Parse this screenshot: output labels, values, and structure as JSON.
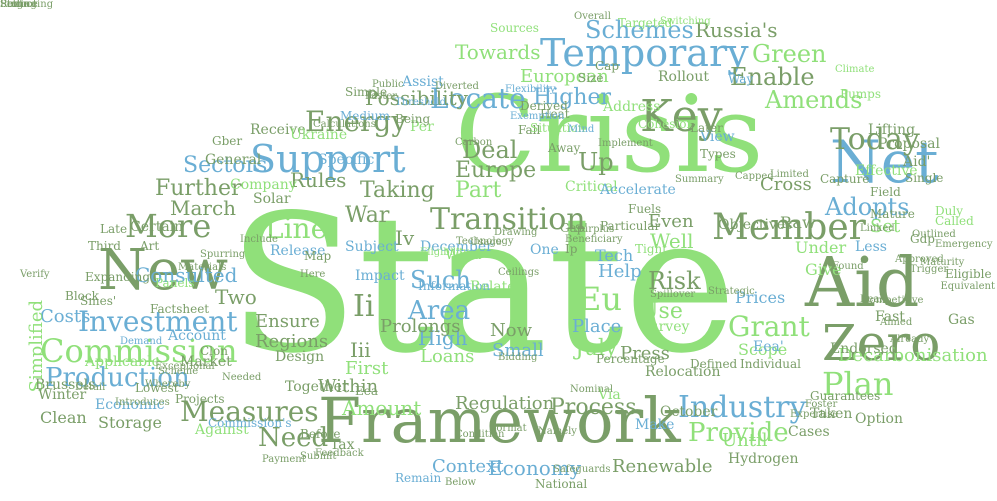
{
  "colors": {
    "light_green": "#90e07a",
    "mid_green": "#7a9e68",
    "blue": "#6aaed4"
  },
  "words": [
    {
      "t": "State",
      "c": "light_green"
    },
    {
      "t": "Crisis",
      "c": "light_green"
    },
    {
      "t": "Framework",
      "c": "mid_green"
    },
    {
      "t": "Aid",
      "c": "mid_green"
    },
    {
      "t": "Net",
      "c": "blue"
    },
    {
      "t": "New",
      "c": "mid_green"
    },
    {
      "t": "Zero",
      "c": "mid_green"
    },
    {
      "t": "Temporary",
      "c": "blue"
    },
    {
      "t": "Member",
      "c": "mid_green"
    },
    {
      "t": "Support",
      "c": "blue"
    },
    {
      "t": "Key",
      "c": "mid_green"
    },
    {
      "t": "Commission",
      "c": "light_green"
    },
    {
      "t": "Transition",
      "c": "mid_green"
    },
    {
      "t": "Measures",
      "c": "mid_green"
    },
    {
      "t": "Investment",
      "c": "blue"
    },
    {
      "t": "Industry",
      "c": "blue"
    },
    {
      "t": "More",
      "c": "mid_green"
    },
    {
      "t": "Energy",
      "c": "mid_green"
    },
    {
      "t": "Production",
      "c": "blue"
    },
    {
      "t": "Plan",
      "c": "light_green"
    },
    {
      "t": "Locate",
      "c": "blue"
    },
    {
      "t": "Today",
      "c": "mid_green"
    },
    {
      "t": "Schemes",
      "c": "blue"
    },
    {
      "t": "Amends",
      "c": "light_green"
    },
    {
      "t": "Adopts",
      "c": "blue"
    },
    {
      "t": "Provide",
      "c": "light_green"
    },
    {
      "t": "Area",
      "c": "blue"
    },
    {
      "t": "Grant",
      "c": "light_green"
    },
    {
      "t": "Eu",
      "c": "light_green"
    },
    {
      "t": "Line",
      "c": "light_green"
    },
    {
      "t": "Deal",
      "c": "mid_green"
    },
    {
      "t": "Europe",
      "c": "mid_green"
    },
    {
      "t": "Higher",
      "c": "blue"
    },
    {
      "t": "Enable",
      "c": "mid_green"
    },
    {
      "t": "Part",
      "c": "light_green"
    },
    {
      "t": "Up",
      "c": "mid_green"
    },
    {
      "t": "Amount",
      "c": "light_green"
    },
    {
      "t": "Process",
      "c": "mid_green"
    },
    {
      "t": "Economy",
      "c": "blue"
    },
    {
      "t": "Need",
      "c": "mid_green"
    },
    {
      "t": "Context",
      "c": "blue"
    },
    {
      "t": "Rules",
      "c": "mid_green"
    },
    {
      "t": "Further",
      "c": "mid_green"
    },
    {
      "t": "Sectors",
      "c": "blue"
    },
    {
      "t": "Possibility",
      "c": "mid_green"
    },
    {
      "t": "Russia's",
      "c": "mid_green"
    },
    {
      "t": "Green",
      "c": "light_green"
    },
    {
      "t": "Towards",
      "c": "light_green"
    },
    {
      "t": "European",
      "c": "light_green"
    },
    {
      "t": "Risk",
      "c": "mid_green"
    },
    {
      "t": "Such",
      "c": "blue"
    },
    {
      "t": "Taking",
      "c": "mid_green"
    },
    {
      "t": "War",
      "c": "mid_green"
    },
    {
      "t": "March",
      "c": "mid_green"
    },
    {
      "t": "Consulted",
      "c": "blue"
    },
    {
      "t": "Two",
      "c": "mid_green"
    },
    {
      "t": "Costs",
      "c": "blue"
    },
    {
      "t": "Simplified",
      "c": "light_green"
    },
    {
      "t": "Regions",
      "c": "mid_green"
    },
    {
      "t": "Ensure",
      "c": "mid_green"
    },
    {
      "t": "Within",
      "c": "mid_green"
    },
    {
      "t": "First",
      "c": "light_green"
    },
    {
      "t": "Iii",
      "c": "mid_green"
    },
    {
      "t": "Ii",
      "c": "mid_green"
    },
    {
      "t": "Iv",
      "c": "mid_green"
    },
    {
      "t": "High",
      "c": "blue"
    },
    {
      "t": "Loans",
      "c": "light_green"
    },
    {
      "t": "Prolongs",
      "c": "mid_green"
    },
    {
      "t": "Regulation",
      "c": "mid_green"
    },
    {
      "t": "Now",
      "c": "mid_green"
    },
    {
      "t": "Small",
      "c": "blue"
    },
    {
      "t": "July",
      "c": "light_green"
    },
    {
      "t": "Place",
      "c": "blue"
    },
    {
      "t": "Press",
      "c": "mid_green"
    },
    {
      "t": "Use",
      "c": "light_green"
    },
    {
      "t": "Help",
      "c": "blue"
    },
    {
      "t": "Tech",
      "c": "blue"
    },
    {
      "t": "Well",
      "c": "light_green"
    },
    {
      "t": "Even",
      "c": "mid_green"
    },
    {
      "t": "Renewable",
      "c": "mid_green"
    },
    {
      "t": "Under",
      "c": "light_green"
    },
    {
      "t": "Give",
      "c": "light_green"
    },
    {
      "t": "Prices",
      "c": "blue"
    },
    {
      "t": "Scope",
      "c": "light_green"
    },
    {
      "t": "Until",
      "c": "light_green"
    },
    {
      "t": "Decarbonisation",
      "c": "light_green"
    },
    {
      "t": "Set",
      "c": "light_green"
    },
    {
      "t": "Less",
      "c": "blue"
    },
    {
      "t": "Cross",
      "c": "mid_green"
    },
    {
      "t": "Raw",
      "c": "mid_green"
    },
    {
      "t": "Critical",
      "c": "light_green"
    },
    {
      "t": "Accelerate",
      "c": "blue"
    },
    {
      "t": "Address",
      "c": "light_green"
    },
    {
      "t": "Heat",
      "c": "mid_green"
    },
    {
      "t": "Fall",
      "c": "mid_green"
    },
    {
      "t": "Derived",
      "c": "mid_green"
    },
    {
      "t": "Per",
      "c": "light_green"
    },
    {
      "t": "Receive",
      "c": "mid_green"
    },
    {
      "t": "General",
      "c": "mid_green"
    },
    {
      "t": "Company",
      "c": "light_green"
    },
    {
      "t": "Ukraine",
      "c": "light_green"
    },
    {
      "t": "Specific",
      "c": "blue"
    },
    {
      "t": "Solar",
      "c": "mid_green"
    },
    {
      "t": "Certain",
      "c": "mid_green"
    },
    {
      "t": "Art",
      "c": "mid_green"
    },
    {
      "t": "Late",
      "c": "mid_green"
    },
    {
      "t": "Block",
      "c": "mid_green"
    },
    {
      "t": "Winter",
      "c": "mid_green"
    },
    {
      "t": "Clean",
      "c": "mid_green"
    },
    {
      "t": "Brussels",
      "c": "mid_green"
    },
    {
      "t": "Storage",
      "c": "mid_green"
    },
    {
      "t": "Economic",
      "c": "blue"
    },
    {
      "t": "Against",
      "c": "light_green"
    },
    {
      "t": "Account",
      "c": "blue"
    },
    {
      "t": "Market",
      "c": "mid_green"
    },
    {
      "t": "Applicable",
      "c": "light_green"
    },
    {
      "t": "Projects",
      "c": "mid_green"
    },
    {
      "t": "Design",
      "c": "mid_green"
    },
    {
      "t": "Together",
      "c": "mid_green"
    },
    {
      "t": "Tax",
      "c": "mid_green"
    },
    {
      "t": "Remain",
      "c": "blue"
    },
    {
      "t": "October",
      "c": "mid_green"
    },
    {
      "t": "Via",
      "c": "light_green"
    },
    {
      "t": "Make",
      "c": "blue"
    },
    {
      "t": "Taken",
      "c": "mid_green"
    },
    {
      "t": "Cases",
      "c": "mid_green"
    },
    {
      "t": "Hydrogen",
      "c": "mid_green"
    },
    {
      "t": "Endorsed",
      "c": "mid_green"
    },
    {
      "t": "Gas",
      "c": "mid_green"
    },
    {
      "t": "Fast",
      "c": "mid_green"
    },
    {
      "t": "Aid'",
      "c": "mid_green"
    },
    {
      "t": "Single",
      "c": "mid_green"
    },
    {
      "t": "Field",
      "c": "mid_green"
    },
    {
      "t": "Lifting",
      "c": "mid_green"
    },
    {
      "t": "Proposal",
      "c": "mid_green"
    },
    {
      "t": "Effective",
      "c": "light_green"
    },
    {
      "t": "Objectives",
      "c": "mid_green"
    },
    {
      "t": "Fuels",
      "c": "mid_green"
    },
    {
      "t": "December",
      "c": "blue"
    },
    {
      "t": "Information",
      "c": "blue"
    },
    {
      "t": "Relocation",
      "c": "mid_green"
    },
    {
      "t": "Survey",
      "c": "light_green"
    },
    {
      "t": "Eea",
      "c": "mid_green"
    },
    {
      "t": "Gdp",
      "c": "mid_green"
    },
    {
      "t": "Subject",
      "c": "blue"
    },
    {
      "t": "Impact",
      "c": "blue"
    },
    {
      "t": "Release",
      "c": "blue"
    },
    {
      "t": "Related",
      "c": "light_green"
    },
    {
      "t": "Rollout",
      "c": "mid_green"
    },
    {
      "t": "Size",
      "c": "mid_green"
    },
    {
      "t": "Sources",
      "c": "light_green"
    },
    {
      "t": "Assist",
      "c": "blue"
    },
    {
      "t": "Simple",
      "c": "mid_green"
    },
    {
      "t": "Situation",
      "c": "light_green"
    },
    {
      "t": "Targeted",
      "c": "light_green"
    },
    {
      "t": "Switching",
      "c": "light_green"
    },
    {
      "t": "Cohesion",
      "c": "light_green"
    },
    {
      "t": "View",
      "c": "blue"
    },
    {
      "t": "Types",
      "c": "mid_green"
    },
    {
      "t": "Capture",
      "c": "mid_green"
    },
    {
      "t": "Duly",
      "c": "light_green"
    },
    {
      "t": "Mature",
      "c": "mid_green"
    },
    {
      "t": "Way",
      "c": "blue"
    },
    {
      "t": "Gber",
      "c": "mid_green"
    },
    {
      "t": "Verify",
      "c": "mid_green"
    },
    {
      "t": "Factsheet",
      "c": "mid_green"
    },
    {
      "t": "Namely",
      "c": "mid_green"
    },
    {
      "t": "Guarantees",
      "c": "mid_green"
    },
    {
      "t": "Cap",
      "c": "mid_green"
    },
    {
      "t": "Eea'",
      "c": "blue"
    },
    {
      "t": "Later",
      "c": "mid_green"
    },
    {
      "t": "Away",
      "c": "mid_green"
    },
    {
      "t": "Implement",
      "c": "mid_green"
    },
    {
      "t": "Particular",
      "c": "mid_green"
    },
    {
      "t": "Ip",
      "c": "mid_green"
    },
    {
      "t": "Gap'",
      "c": "mid_green"
    },
    {
      "t": "One",
      "c": "blue"
    },
    {
      "t": "Wind",
      "c": "light_green"
    },
    {
      "t": "Percentage",
      "c": "mid_green"
    },
    {
      "t": "Beneficiary",
      "c": "mid_green"
    },
    {
      "t": "Defined",
      "c": "mid_green"
    },
    {
      "t": "Tight",
      "c": "light_green"
    },
    {
      "t": "Individual",
      "c": "mid_green"
    },
    {
      "t": "Option",
      "c": "mid_green"
    },
    {
      "t": "Foster",
      "c": "mid_green"
    },
    {
      "t": "Pumps",
      "c": "light_green"
    },
    {
      "t": "Climate",
      "c": "light_green"
    },
    {
      "t": "Eligible",
      "c": "mid_green"
    },
    {
      "t": "Called",
      "c": "light_green"
    },
    {
      "t": "Emergency",
      "c": "mid_green"
    },
    {
      "t": "Smes'",
      "c": "mid_green"
    },
    {
      "t": "Third",
      "c": "mid_green"
    },
    {
      "t": "Expanding",
      "c": "mid_green"
    },
    {
      "t": "Panels",
      "c": "light_green"
    },
    {
      "t": "Clon",
      "c": "mid_green"
    },
    {
      "t": "Lowest",
      "c": "mid_green"
    },
    {
      "t": "Introduces",
      "c": "mid_green"
    },
    {
      "t": "Commission's",
      "c": "blue"
    },
    {
      "t": "Before",
      "c": "mid_green"
    },
    {
      "t": "Feedback",
      "c": "mid_green"
    },
    {
      "t": "Submit",
      "c": "mid_green"
    },
    {
      "t": "Below",
      "c": "mid_green"
    },
    {
      "t": "National",
      "c": "mid_green"
    },
    {
      "t": "Safeguards",
      "c": "mid_green"
    },
    {
      "t": "Condition",
      "c": "mid_green"
    },
    {
      "t": "Here",
      "c": "mid_green"
    },
    {
      "t": "Map",
      "c": "mid_green"
    },
    {
      "t": "Bidding",
      "c": "mid_green"
    },
    {
      "t": "Technology",
      "c": "mid_green"
    },
    {
      "t": "Eligibility",
      "c": "light_green"
    },
    {
      "t": "Overall",
      "c": "mid_green"
    },
    {
      "t": "Public",
      "c": "mid_green"
    },
    {
      "t": "Medium",
      "c": "blue"
    },
    {
      "t": "Diverted",
      "c": "mid_green"
    },
    {
      "t": "Capped",
      "c": "mid_green"
    },
    {
      "t": "Limited",
      "c": "mid_green"
    },
    {
      "t": "Linked",
      "c": "mid_green"
    },
    {
      "t": "Competitive",
      "c": "mid_green"
    },
    {
      "t": "Trigger",
      "c": "mid_green"
    },
    {
      "t": "Nominal",
      "c": "mid_green"
    },
    {
      "t": "Exemption",
      "c": "blue"
    },
    {
      "t": "Being",
      "c": "mid_green"
    },
    {
      "t": "Mind",
      "c": "blue"
    },
    {
      "t": "Carbon",
      "c": "mid_green"
    },
    {
      "t": "Real",
      "c": "mid_green"
    },
    {
      "t": "Aimed",
      "c": "mid_green"
    },
    {
      "t": "Already",
      "c": "mid_green"
    },
    {
      "t": "Found",
      "c": "mid_green"
    },
    {
      "t": "Format",
      "c": "mid_green"
    },
    {
      "t": "Ceilings",
      "c": "mid_green"
    },
    {
      "t": "Usage",
      "c": "mid_green"
    },
    {
      "t": "Drawing",
      "c": "mid_green"
    },
    {
      "t": "Expertise",
      "c": "mid_green"
    },
    {
      "t": "Exceptional",
      "c": "mid_green"
    },
    {
      "t": "Faster",
      "c": "mid_green"
    },
    {
      "t": "Calculations",
      "c": "mid_green"
    },
    {
      "t": "Threshold",
      "c": "blue"
    },
    {
      "t": "Spillover",
      "c": "mid_green"
    },
    {
      "t": "Surplus",
      "c": "mid_green"
    },
    {
      "t": "Strategic",
      "c": "mid_green"
    },
    {
      "t": "Outlined",
      "c": "mid_green"
    },
    {
      "t": "Maturity",
      "c": "mid_green"
    },
    {
      "t": "Approved",
      "c": "mid_green"
    },
    {
      "t": "Equivalent",
      "c": "mid_green"
    },
    {
      "t": "Detail",
      "c": "mid_green"
    },
    {
      "t": "Include",
      "c": "mid_green"
    },
    {
      "t": "Payment",
      "c": "mid_green"
    },
    {
      "t": "Scheme",
      "c": "mid_green"
    },
    {
      "t": "Demand",
      "c": "blue"
    },
    {
      "t": "Needed",
      "c": "mid_green"
    },
    {
      "t": "Materials",
      "c": "mid_green"
    },
    {
      "t": "Spurring",
      "c": "mid_green"
    },
    {
      "t": "Whereby",
      "c": "mid_green"
    },
    {
      "t": "Flexibility",
      "c": "blue"
    },
    {
      "t": "Summary",
      "c": "mid_green"
    },
    {
      "t": "Stage",
      "c": "mid_green"
    },
    {
      "t": "Setting",
      "c": "mid_green"
    },
    {
      "t": "Reduce",
      "c": "mid_green"
    },
    {
      "t": "Sent",
      "c": "mid_green"
    },
    {
      "t": "Promoting",
      "c": "mid_green"
    }
  ]
}
